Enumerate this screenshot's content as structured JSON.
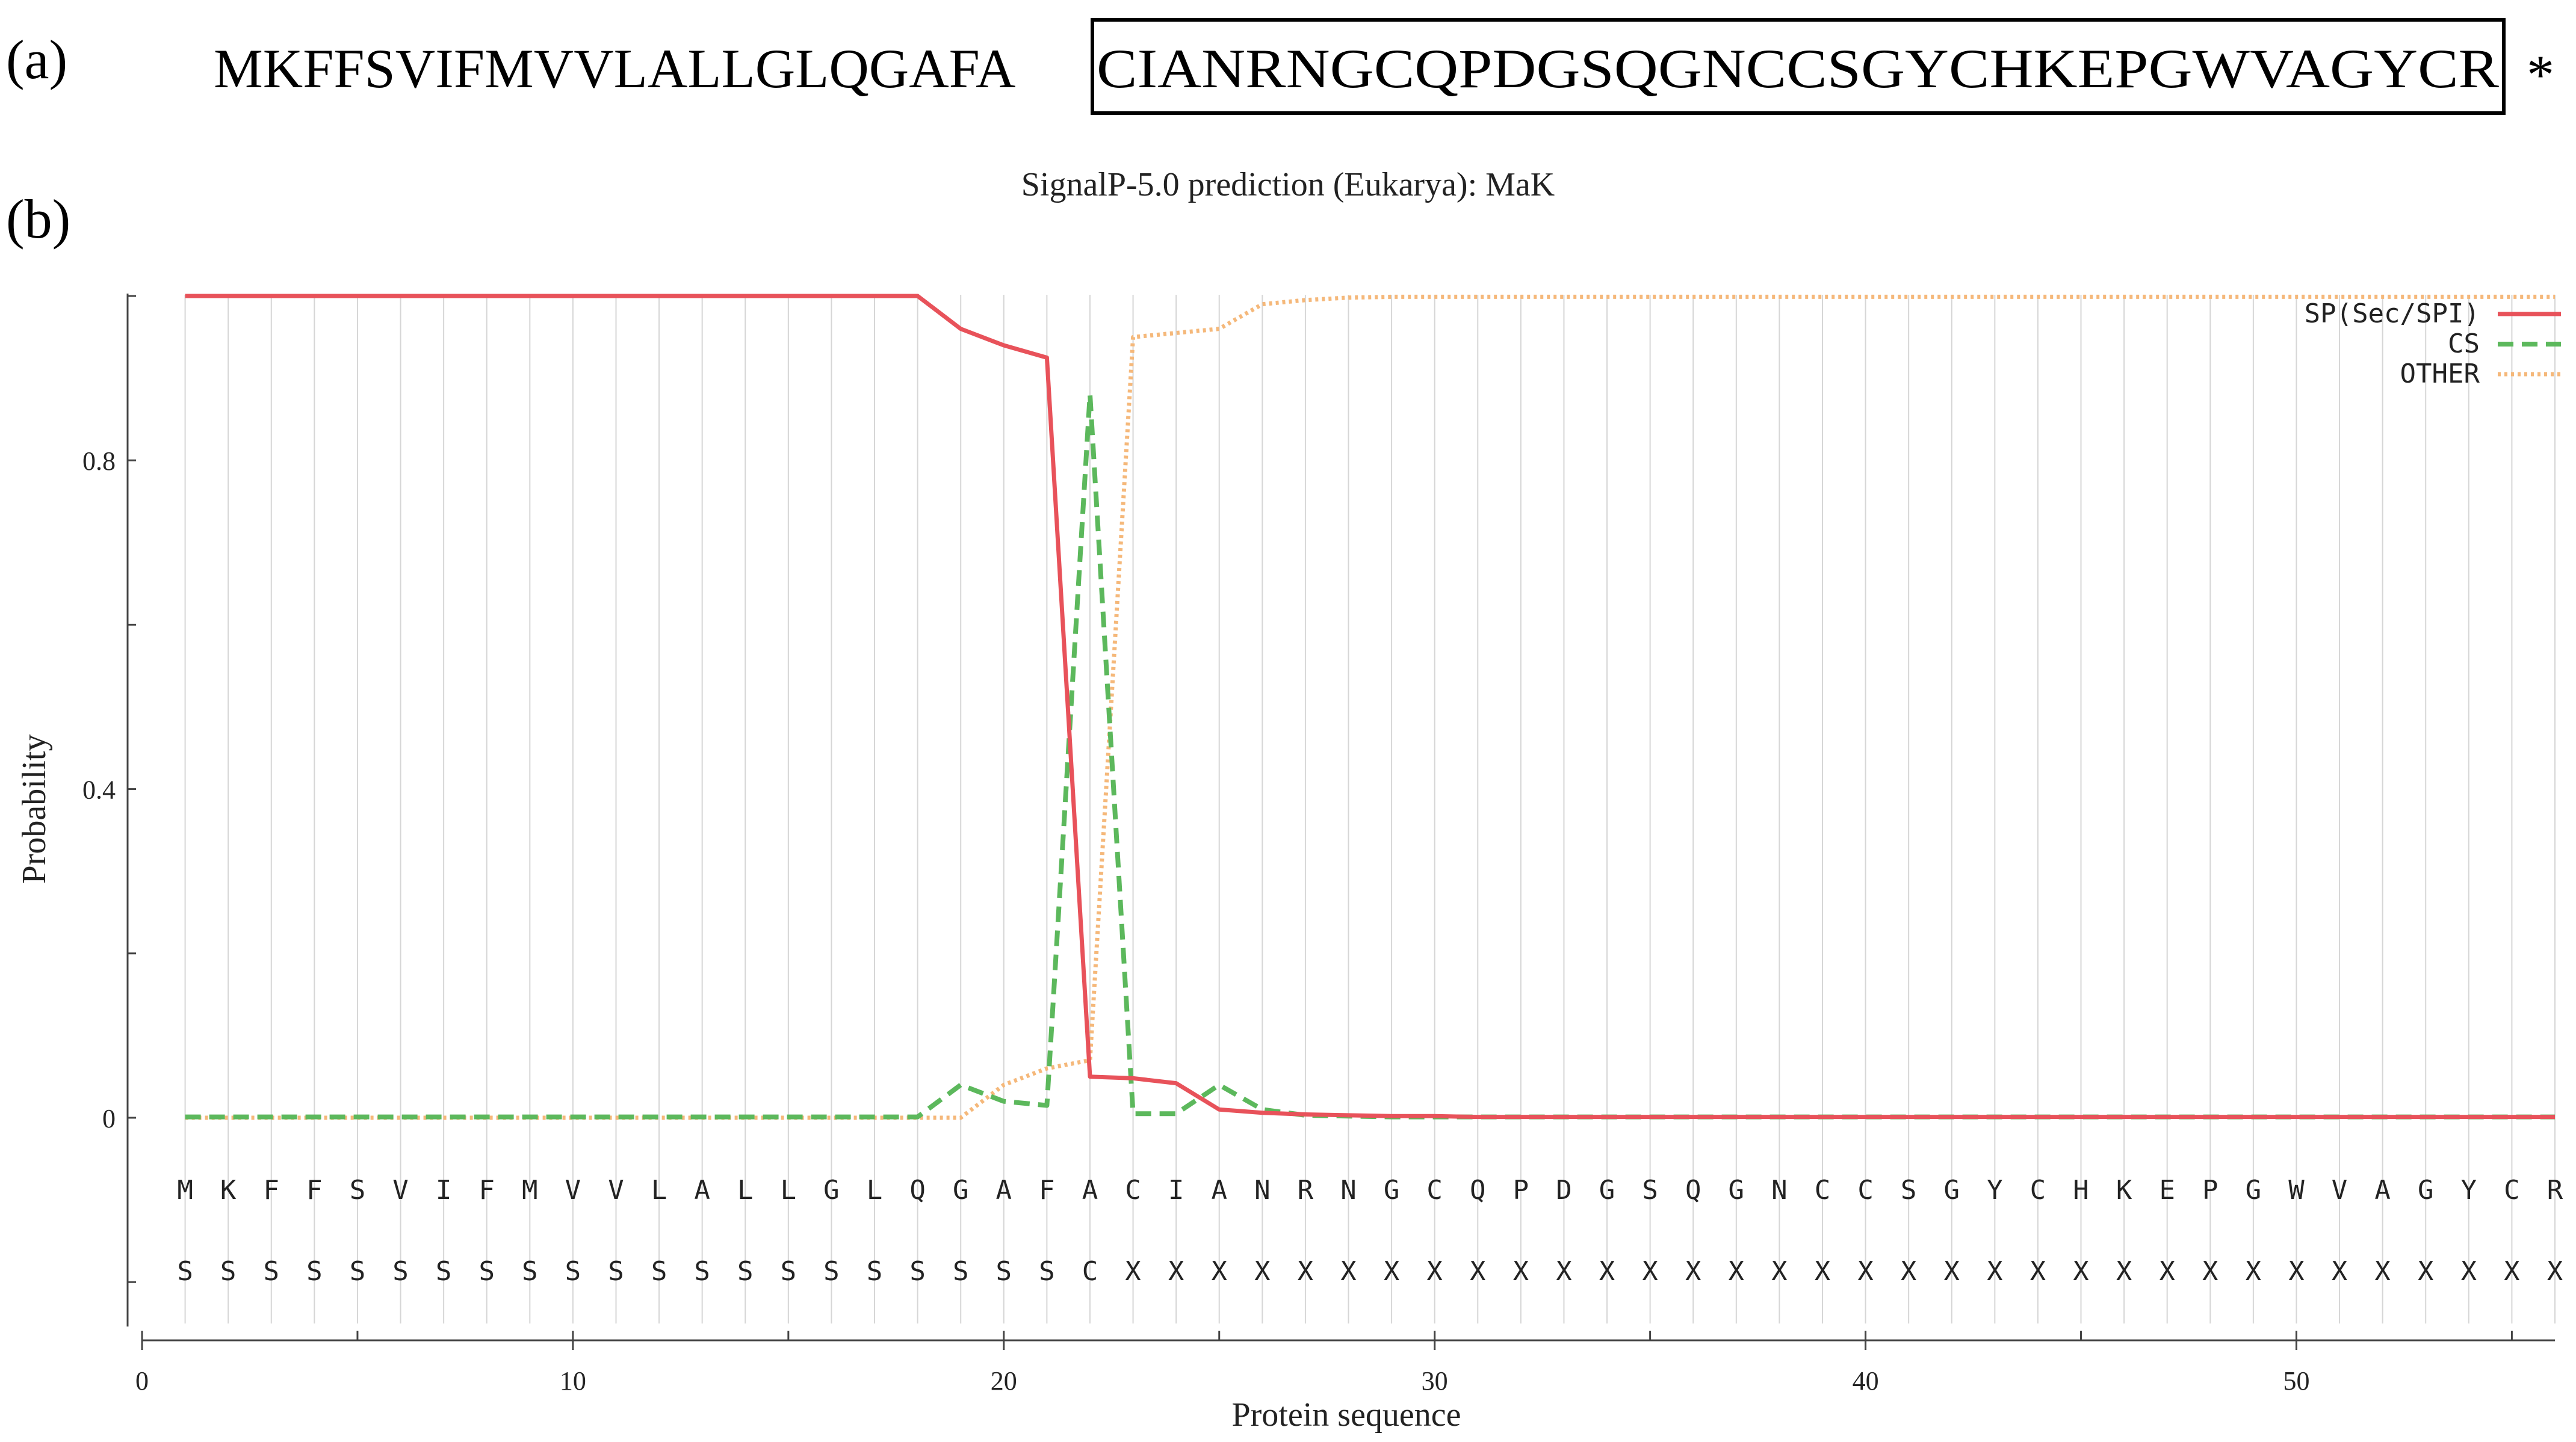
{
  "panel_a": {
    "label": "(a)",
    "signal_sequence": "MKFFSVIFMVVLALLGLQGAFA",
    "mature_sequence": "CIANRNGCQPDGSQGNCCSGYCHKEPGWVAGYCR",
    "stop_symbol": "*"
  },
  "panel_b": {
    "label": "(b)"
  },
  "chart_data": {
    "type": "line",
    "title": "SignalP-5.0 prediction (Eukarya):  MaK",
    "xlabel": "Protein sequence",
    "ylabel": "Probability",
    "xlim": [
      0,
      56
    ],
    "ylim": [
      -0.2,
      1.0
    ],
    "x_ticks": [
      0,
      10,
      20,
      30,
      40,
      50
    ],
    "y_ticks": [
      0,
      0.4,
      0.8
    ],
    "y_tick_labels": [
      "0",
      "0.4",
      "0.8"
    ],
    "grid": "vertical lines at each residue",
    "legend_position": "top-right",
    "residues": [
      "M",
      "K",
      "F",
      "F",
      "S",
      "V",
      "I",
      "F",
      "M",
      "V",
      "V",
      "L",
      "A",
      "L",
      "L",
      "G",
      "L",
      "Q",
      "G",
      "A",
      "F",
      "A",
      "C",
      "I",
      "A",
      "N",
      "R",
      "N",
      "G",
      "C",
      "Q",
      "P",
      "D",
      "G",
      "S",
      "Q",
      "G",
      "N",
      "C",
      "C",
      "S",
      "G",
      "Y",
      "C",
      "H",
      "K",
      "E",
      "P",
      "G",
      "W",
      "V",
      "A",
      "G",
      "Y",
      "C",
      "R"
    ],
    "predicted_labels": [
      "S",
      "S",
      "S",
      "S",
      "S",
      "S",
      "S",
      "S",
      "S",
      "S",
      "S",
      "S",
      "S",
      "S",
      "S",
      "S",
      "S",
      "S",
      "S",
      "S",
      "S",
      "C",
      "X",
      "X",
      "X",
      "X",
      "X",
      "X",
      "X",
      "X",
      "X",
      "X",
      "X",
      "X",
      "X",
      "X",
      "X",
      "X",
      "X",
      "X",
      "X",
      "X",
      "X",
      "X",
      "X",
      "X",
      "X",
      "X",
      "X",
      "X",
      "X",
      "X",
      "X",
      "X",
      "X",
      "X"
    ],
    "series": [
      {
        "name": "SP(Sec/SPI)",
        "color": "#e8525a",
        "style": "solid",
        "x": [
          1,
          2,
          3,
          4,
          5,
          6,
          7,
          8,
          9,
          10,
          11,
          12,
          13,
          14,
          15,
          16,
          17,
          18,
          19,
          20,
          21,
          22,
          23,
          24,
          25,
          26,
          27,
          28,
          29,
          30,
          31,
          32,
          33,
          34,
          35,
          36,
          37,
          38,
          39,
          40,
          41,
          42,
          43,
          44,
          45,
          46,
          47,
          48,
          49,
          50,
          51,
          52,
          53,
          54,
          55,
          56
        ],
        "values": [
          1.0,
          1.0,
          1.0,
          1.0,
          1.0,
          1.0,
          1.0,
          1.0,
          1.0,
          1.0,
          1.0,
          1.0,
          1.0,
          1.0,
          1.0,
          1.0,
          1.0,
          1.0,
          0.96,
          0.94,
          0.925,
          0.05,
          0.048,
          0.042,
          0.01,
          0.006,
          0.004,
          0.003,
          0.002,
          0.002,
          0.001,
          0.001,
          0.001,
          0.001,
          0.001,
          0.001,
          0.001,
          0.001,
          0.001,
          0.001,
          0.001,
          0.001,
          0.001,
          0.001,
          0.001,
          0.001,
          0.001,
          0.001,
          0.001,
          0.001,
          0.001,
          0.001,
          0.001,
          0.001,
          0.001,
          0.001
        ]
      },
      {
        "name": "CS",
        "color": "#5cb85c",
        "style": "dashed",
        "x": [
          1,
          2,
          3,
          4,
          5,
          6,
          7,
          8,
          9,
          10,
          11,
          12,
          13,
          14,
          15,
          16,
          17,
          18,
          19,
          20,
          21,
          22,
          23,
          24,
          25,
          26,
          27,
          28,
          29,
          30,
          31,
          32,
          33,
          34,
          35,
          36,
          37,
          38,
          39,
          40,
          41,
          42,
          43,
          44,
          45,
          46,
          47,
          48,
          49,
          50,
          51,
          52,
          53,
          54,
          55,
          56
        ],
        "values": [
          0.001,
          0.001,
          0.001,
          0.001,
          0.001,
          0.001,
          0.001,
          0.001,
          0.001,
          0.001,
          0.001,
          0.001,
          0.001,
          0.001,
          0.001,
          0.001,
          0.001,
          0.001,
          0.04,
          0.02,
          0.015,
          0.88,
          0.005,
          0.005,
          0.04,
          0.01,
          0.003,
          0.002,
          0.001,
          0.001,
          0.001,
          0.001,
          0.001,
          0.001,
          0.001,
          0.001,
          0.001,
          0.001,
          0.001,
          0.001,
          0.001,
          0.001,
          0.001,
          0.001,
          0.001,
          0.001,
          0.001,
          0.001,
          0.001,
          0.001,
          0.001,
          0.001,
          0.001,
          0.001,
          0.001,
          0.001
        ]
      },
      {
        "name": "OTHER",
        "color": "#f5b87a",
        "style": "dotted",
        "x": [
          1,
          2,
          3,
          4,
          5,
          6,
          7,
          8,
          9,
          10,
          11,
          12,
          13,
          14,
          15,
          16,
          17,
          18,
          19,
          20,
          21,
          22,
          23,
          24,
          25,
          26,
          27,
          28,
          29,
          30,
          31,
          32,
          33,
          34,
          35,
          36,
          37,
          38,
          39,
          40,
          41,
          42,
          43,
          44,
          45,
          46,
          47,
          48,
          49,
          50,
          51,
          52,
          53,
          54,
          55,
          56
        ],
        "values": [
          0.0,
          0.0,
          0.0,
          0.0,
          0.0,
          0.0,
          0.0,
          0.0,
          0.0,
          0.0,
          0.0,
          0.0,
          0.0,
          0.0,
          0.0,
          0.0,
          0.0,
          0.0,
          0.0,
          0.04,
          0.06,
          0.07,
          0.95,
          0.955,
          0.96,
          0.99,
          0.995,
          0.998,
          0.999,
          0.999,
          0.999,
          0.999,
          0.999,
          0.999,
          0.999,
          0.999,
          0.999,
          0.999,
          0.999,
          0.999,
          0.999,
          0.999,
          0.999,
          0.999,
          0.999,
          0.999,
          0.999,
          0.999,
          0.999,
          0.999,
          0.999,
          0.999,
          0.999,
          0.999,
          0.999,
          0.999
        ]
      }
    ]
  }
}
